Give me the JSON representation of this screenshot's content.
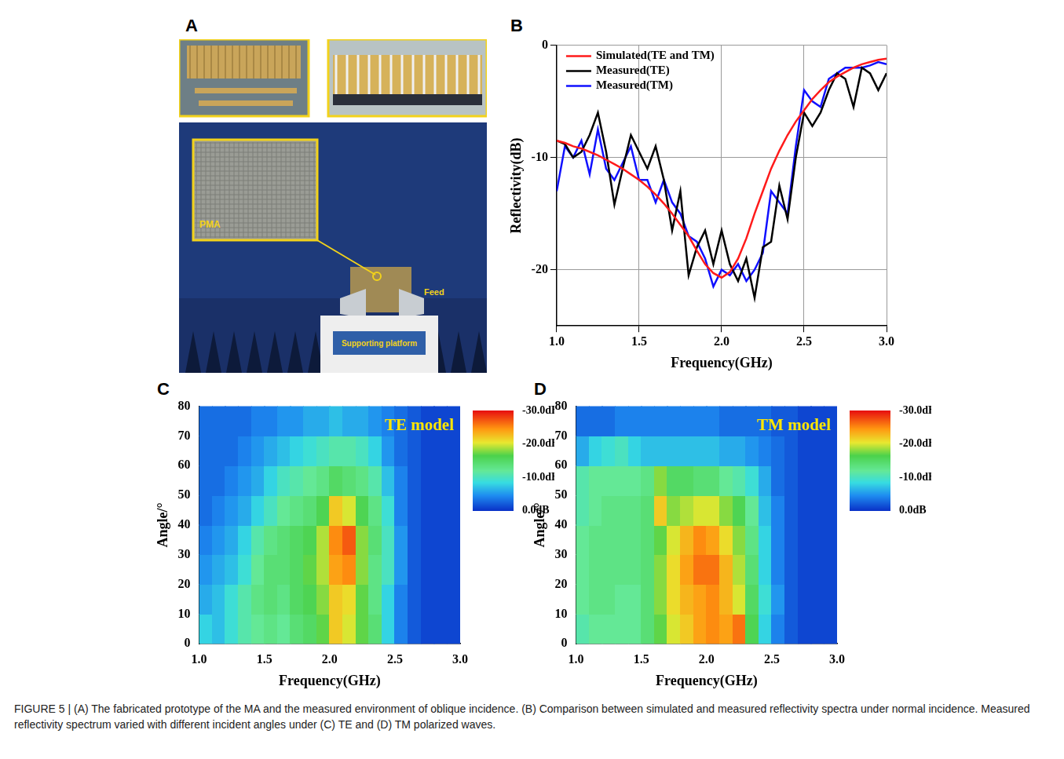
{
  "photo": {
    "panel": "A",
    "labels": [
      "PMA",
      "Feed",
      "Supporting platform"
    ]
  },
  "chart_data": [
    {
      "panel": "B",
      "type": "line",
      "x_label": "Frequency(GHz)",
      "y_label": "Reflectivity(dB)",
      "x": [
        1.0,
        1.05,
        1.1,
        1.15,
        1.2,
        1.25,
        1.3,
        1.35,
        1.4,
        1.45,
        1.5,
        1.55,
        1.6,
        1.65,
        1.7,
        1.75,
        1.8,
        1.85,
        1.9,
        1.95,
        2.0,
        2.05,
        2.1,
        2.15,
        2.2,
        2.25,
        2.3,
        2.35,
        2.4,
        2.45,
        2.5,
        2.55,
        2.6,
        2.65,
        2.7,
        2.75,
        2.8,
        2.85,
        2.9,
        2.95,
        3.0
      ],
      "series": [
        {
          "name": "Simulated(TE and TM)",
          "color": "#ff1a1a",
          "line_style": "solid",
          "values": [
            -8.5,
            -8.7,
            -9.0,
            -9.2,
            -9.5,
            -9.8,
            -10.2,
            -10.6,
            -11.0,
            -11.5,
            -12.0,
            -12.6,
            -13.3,
            -14.1,
            -15.0,
            -16.0,
            -17.0,
            -18.3,
            -19.5,
            -20.3,
            -20.7,
            -20.2,
            -19.0,
            -17.2,
            -15.0,
            -13.0,
            -11.0,
            -9.4,
            -8.0,
            -6.8,
            -5.8,
            -4.8,
            -4.0,
            -3.3,
            -2.8,
            -2.4,
            -2.0,
            -1.7,
            -1.5,
            -1.3,
            -1.2
          ]
        },
        {
          "name": "Measured(TE)",
          "color": "#000000",
          "line_style": "solid",
          "values": [
            -8.5,
            -8.8,
            -10,
            -9.5,
            -8,
            -6,
            -9.5,
            -14.2,
            -11,
            -8,
            -9.5,
            -11,
            -9,
            -12,
            -16.5,
            -13,
            -20.5,
            -18,
            -16.5,
            -19.5,
            -16.5,
            -19.5,
            -21,
            -19,
            -22.5,
            -18,
            -17.5,
            -12.5,
            -15.5,
            -10,
            -6,
            -7.2,
            -6,
            -4,
            -2.5,
            -3,
            -5.5,
            -2,
            -2.5,
            -4,
            -2.5
          ]
        },
        {
          "name": "Measured(TM)",
          "color": "#1010ff",
          "line_style": "solid",
          "values": [
            -13,
            -9,
            -10,
            -8.5,
            -11.5,
            -7.5,
            -11,
            -12,
            -10.5,
            -9,
            -12,
            -12,
            -14,
            -12,
            -14,
            -15,
            -17,
            -17.5,
            -19,
            -21.5,
            -20,
            -20.5,
            -19.5,
            -21,
            -20,
            -18.5,
            -13,
            -14,
            -15,
            -9,
            -4,
            -5,
            -5.5,
            -3,
            -2.5,
            -2,
            -2,
            -2,
            -1.8,
            -1.5,
            -1.7
          ]
        }
      ],
      "xlim": [
        1.0,
        3.0
      ],
      "xticks": [
        {
          "value": 1,
          "label": "1.0"
        },
        1.5,
        {
          "value": 2,
          "label": "2.0"
        },
        2.5,
        {
          "value": 3,
          "label": "3.0"
        }
      ],
      "ylim": [
        -25,
        0
      ],
      "yticks": [
        -20,
        -10,
        0
      ],
      "grid": true,
      "legend": "top left"
    },
    {
      "panel": "C",
      "type": "heatmap",
      "annotation": "TE model",
      "x_label": "Frequency(GHz)",
      "y_label": "Angle/°",
      "x_bins": [
        1.0,
        1.1,
        1.2,
        1.3,
        1.4,
        1.5,
        1.6,
        1.7,
        1.8,
        1.9,
        2.0,
        2.1,
        2.2,
        2.3,
        2.4,
        2.5,
        2.6,
        2.7,
        2.8,
        2.9,
        3.0
      ],
      "y_bins": [
        0,
        10,
        20,
        30,
        40,
        50,
        60,
        70,
        80
      ],
      "cells": [
        [
          -8,
          -7,
          -9,
          -11,
          -12,
          -13,
          -12,
          -14,
          -15,
          -17,
          -22,
          -20,
          -17,
          -14,
          -8,
          -4,
          -2,
          -1,
          -1,
          -1
        ],
        [
          -6,
          -7,
          -9,
          -11,
          -13,
          -14,
          -13,
          -15,
          -16,
          -18,
          -22,
          -21,
          -17,
          -13,
          -8,
          -4,
          -2,
          -1,
          -1,
          -1
        ],
        [
          -5,
          -6,
          -7,
          -9,
          -12,
          -14,
          -14,
          -15,
          -17,
          -19,
          -24,
          -25,
          -18,
          -13,
          -10,
          -5,
          -2,
          -1,
          -1,
          -1
        ],
        [
          -4,
          -5,
          -6,
          -8,
          -11,
          -13,
          -14,
          -15,
          -16,
          -19,
          -25,
          -27,
          -18,
          -14,
          -10,
          -5,
          -2,
          -1,
          -1,
          -1
        ],
        [
          -3,
          -4,
          -5,
          -6,
          -8,
          -10,
          -12,
          -13,
          -14,
          -16,
          -22,
          -20,
          -16,
          -13,
          -9,
          -4,
          -2,
          -1,
          -1,
          -1
        ],
        [
          -3,
          -3,
          -4,
          -5,
          -6,
          -8,
          -10,
          -11,
          -12,
          -13,
          -15,
          -14,
          -13,
          -11,
          -7,
          -4,
          -2,
          -1,
          -1,
          -1
        ],
        [
          -3,
          -3,
          -3,
          -4,
          -5,
          -6,
          -7,
          -8,
          -9,
          -10,
          -11,
          -11,
          -10,
          -8,
          -5,
          -3,
          -2,
          -1,
          -1,
          -1
        ],
        [
          -3,
          -3,
          -3,
          -3,
          -4,
          -4,
          -5,
          -5,
          -6,
          -6,
          -7,
          -6,
          -6,
          -5,
          -4,
          -3,
          -2,
          -1,
          -1,
          -1
        ]
      ],
      "xlim": [
        1.0,
        3.0
      ],
      "xticks": [
        {
          "value": 1,
          "label": "1.0"
        },
        1.5,
        {
          "value": 2,
          "label": "2.0"
        },
        2.5,
        {
          "value": 3,
          "label": "3.0"
        }
      ],
      "ylim": [
        0,
        80
      ],
      "yticks": [
        0,
        10,
        20,
        30,
        40,
        50,
        60,
        70,
        80
      ],
      "colorbar_lim": [
        -30,
        0
      ],
      "colorbar_ticks": [
        {
          "value": -30,
          "label": "-30.0dB"
        },
        {
          "value": -20,
          "label": "-20.0dB"
        },
        {
          "value": -10,
          "label": "-10.0dB"
        },
        {
          "value": 0,
          "label": "0.0dB"
        }
      ]
    },
    {
      "panel": "D",
      "type": "heatmap",
      "annotation": "TM model",
      "x_label": "Frequency(GHz)",
      "y_label": "Angle/°",
      "x_bins": [
        1.0,
        1.1,
        1.2,
        1.3,
        1.4,
        1.5,
        1.6,
        1.7,
        1.8,
        1.9,
        2.0,
        2.1,
        2.2,
        2.3,
        2.4,
        2.5,
        2.6,
        2.7,
        2.8,
        2.9,
        3.0
      ],
      "y_bins": [
        0,
        10,
        20,
        30,
        40,
        50,
        60,
        70,
        80
      ],
      "cells": [
        [
          -11,
          -12,
          -12,
          -12,
          -12,
          -14,
          -17,
          -20,
          -22,
          -24,
          -25,
          -24,
          -26,
          -16,
          -8,
          -4,
          -2,
          -1,
          -1,
          -1
        ],
        [
          -12,
          -13,
          -13,
          -12,
          -12,
          -14,
          -18,
          -21,
          -23,
          -24,
          -25,
          -23,
          -20,
          -15,
          -9,
          -5,
          -2,
          -1,
          -1,
          -1
        ],
        [
          -12,
          -13,
          -13,
          -13,
          -13,
          -14,
          -18,
          -21,
          -24,
          -26,
          -26,
          -23,
          -19,
          -14,
          -8,
          -4,
          -2,
          -1,
          -1,
          -1
        ],
        [
          -12,
          -13,
          -13,
          -13,
          -13,
          -14,
          -17,
          -20,
          -23,
          -25,
          -24,
          -21,
          -18,
          -13,
          -8,
          -4,
          -2,
          -1,
          -1,
          -1
        ],
        [
          -11,
          -12,
          -13,
          -13,
          -13,
          -14,
          -22,
          -18,
          -19,
          -20,
          -20,
          -18,
          -16,
          -12,
          -7,
          -4,
          -2,
          -1,
          -1,
          -1
        ],
        [
          -11,
          -12,
          -12,
          -12,
          -12,
          -13,
          -18,
          -15,
          -15,
          -14,
          -14,
          -12,
          -11,
          -9,
          -6,
          -3,
          -2,
          -1,
          -1,
          -1
        ],
        [
          -6,
          -8,
          -9,
          -10,
          -8,
          -7,
          -7,
          -7,
          -7,
          -7,
          -7,
          -6,
          -6,
          -5,
          -4,
          -3,
          -2,
          -1,
          -1,
          -1
        ],
        [
          -3,
          -3,
          -3,
          -4,
          -4,
          -4,
          -4,
          -4,
          -4,
          -4,
          -4,
          -3,
          -3,
          -3,
          -3,
          -2,
          -2,
          -1,
          -1,
          -1
        ]
      ],
      "xlim": [
        1.0,
        3.0
      ],
      "xticks": [
        {
          "value": 1,
          "label": "1.0"
        },
        1.5,
        {
          "value": 2,
          "label": "2.0"
        },
        2.5,
        {
          "value": 3,
          "label": "3.0"
        }
      ],
      "ylim": [
        0,
        80
      ],
      "yticks": [
        0,
        10,
        20,
        30,
        40,
        50,
        60,
        70,
        80
      ],
      "colorbar_lim": [
        -30,
        0
      ],
      "colorbar_ticks": [
        {
          "value": -30,
          "label": "-30.0dB"
        },
        {
          "value": -20,
          "label": "-20.0dB"
        },
        {
          "value": -10,
          "label": "-10.0dB"
        },
        {
          "value": 0,
          "label": "0.0dB"
        }
      ]
    }
  ],
  "caption": "FIGURE 5 | (A) The fabricated prototype of the MA and the measured environment of oblique incidence. (B) Comparison between simulated and measured reflectivity spectra under normal incidence. Measured reflectivity spectrum varied with different incident angles under (C) TE and (D) TM polarized waves."
}
